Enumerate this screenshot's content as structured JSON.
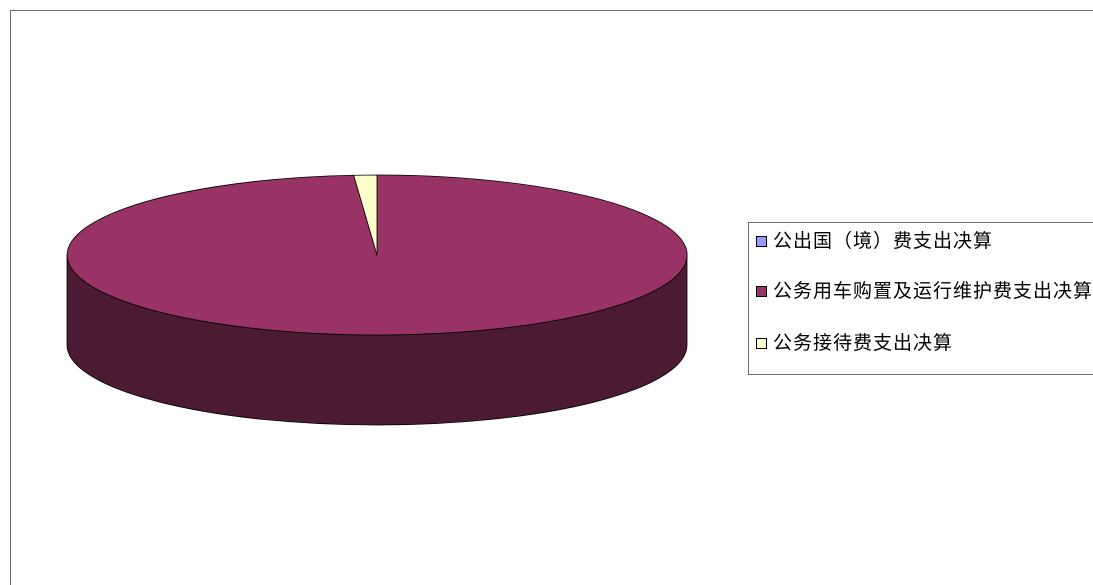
{
  "chart_data": {
    "type": "pie",
    "style": "3d",
    "categories": [
      "公出国（境）费支出决算",
      "公务用车购置及运行维护费支出决算",
      "公务接待费支出决算"
    ],
    "values": [
      0,
      98.8,
      1.2
    ],
    "colors": [
      "#9999FF",
      "#993366",
      "#FFFFCC"
    ],
    "legend_position": "right"
  }
}
